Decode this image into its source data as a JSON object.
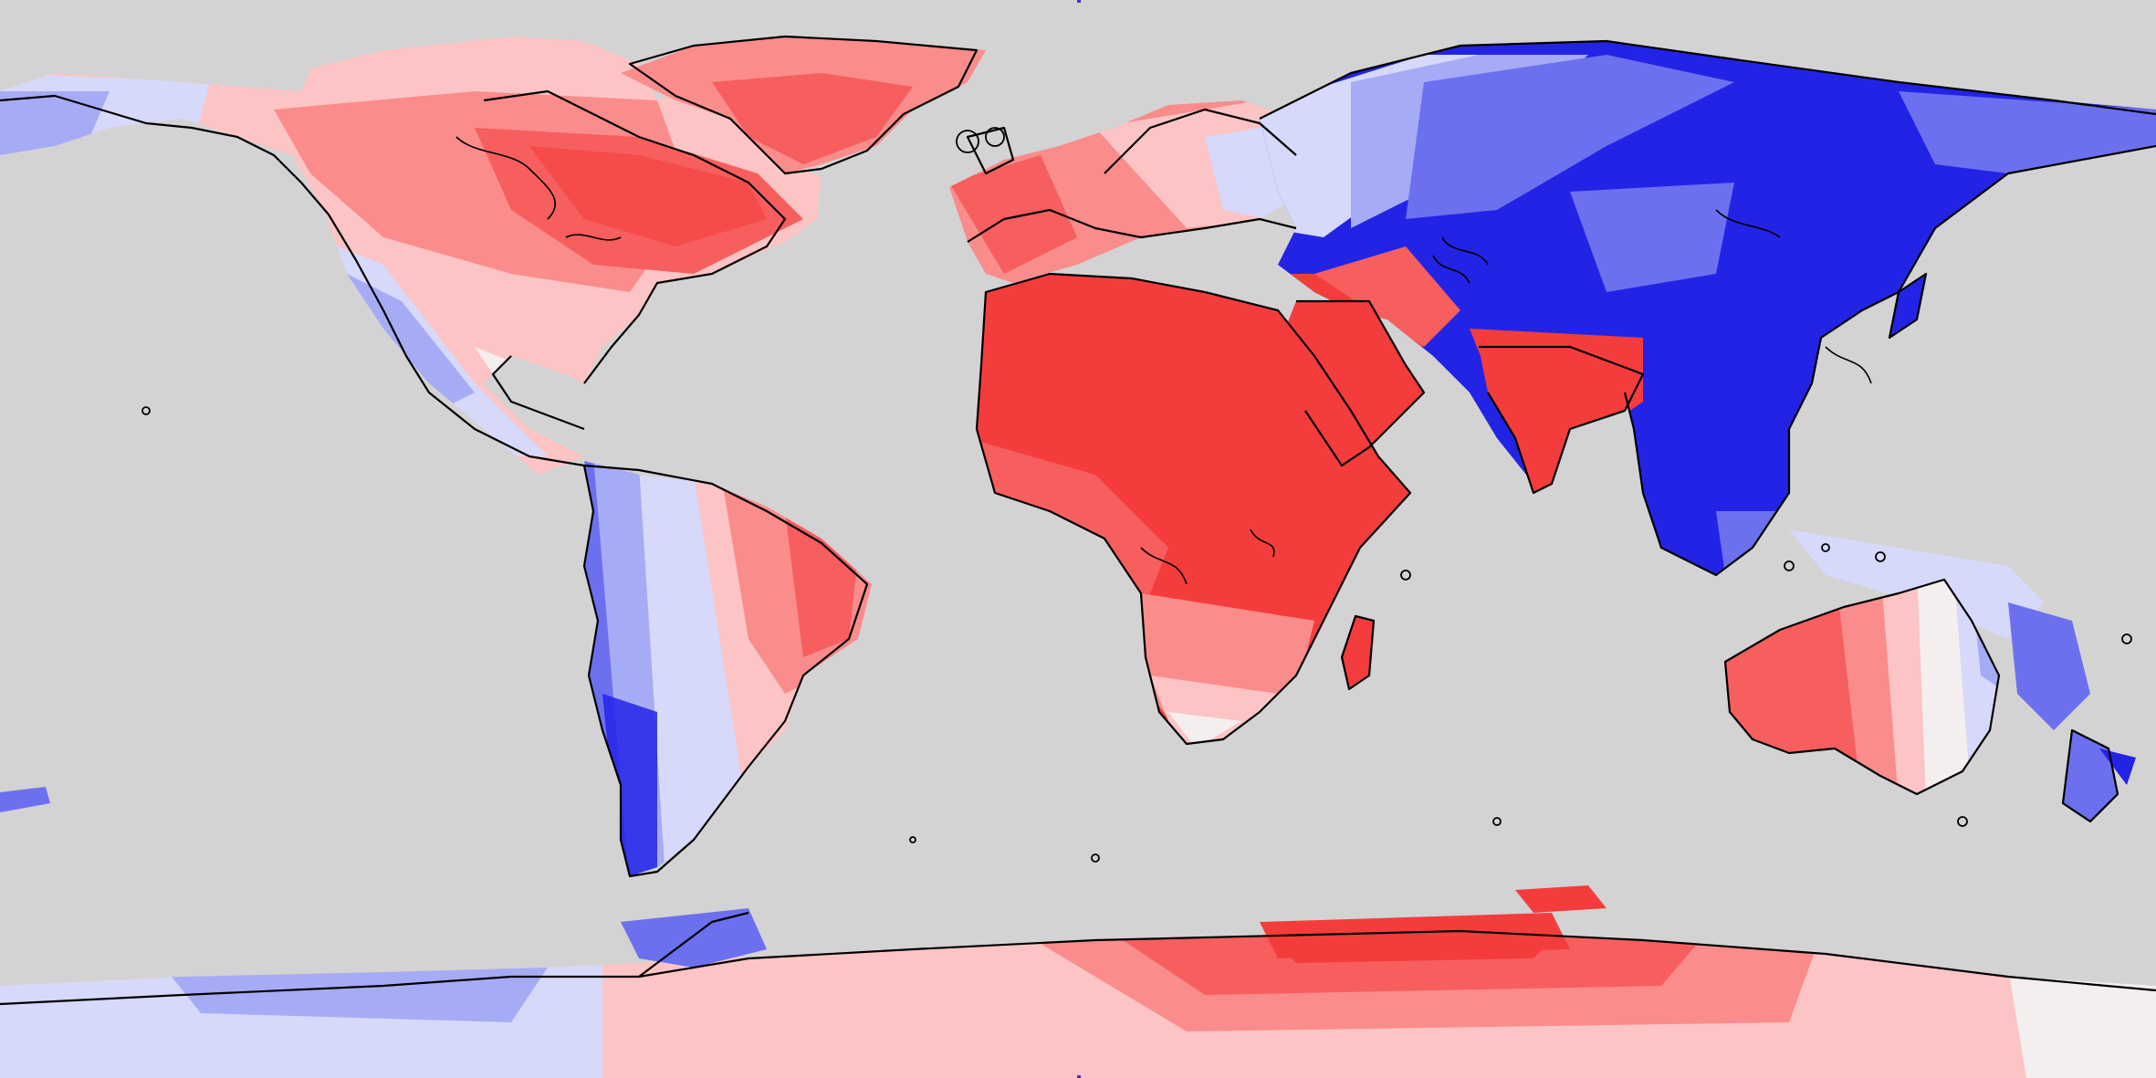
{
  "map": {
    "projection": "equirectangular",
    "background_color": "#d3d3d3",
    "coastline_color": "#000000",
    "palette": {
      "red_strong": "#f53c3c",
      "red_mid": "#f75e5e",
      "red_light": "#fa8c8c",
      "red_pale": "#fcc4c4",
      "white": "#f4eeee",
      "blue_pale": "#d6d9fa",
      "blue_light": "#a6abf5",
      "blue_mid": "#6c70ef",
      "blue_strong": "#2323e6"
    }
  }
}
